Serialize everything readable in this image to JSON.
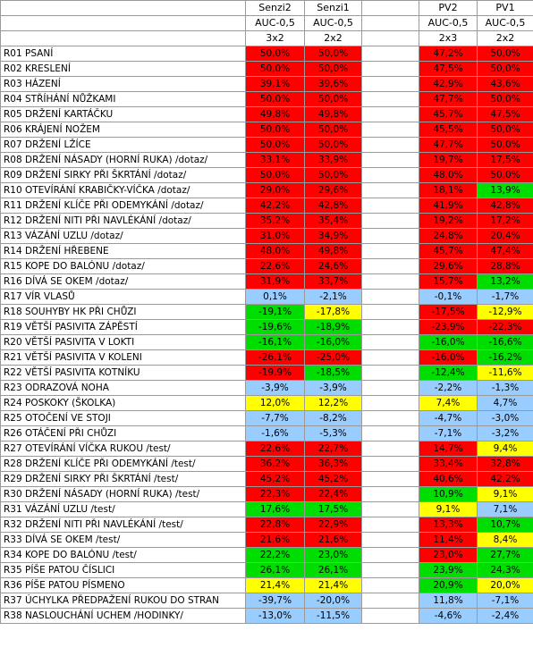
{
  "header": {
    "row1": [
      "Senzi2",
      "Senzi1",
      "PV2",
      "PV1"
    ],
    "row2": [
      "AUC-0,5",
      "AUC-0,5",
      "AUC-0,5",
      "AUC-0,5"
    ],
    "row3": [
      "3x2",
      "2x2",
      "2x3",
      "2x2"
    ]
  },
  "colors": {
    "red": "#ff0000",
    "green": "#00dd00",
    "yellow": "#ffff00",
    "blue": "#99ccff"
  },
  "rows": [
    {
      "label": "R01 PSANÍ",
      "v": [
        "50,0%",
        "50,0%",
        "47,2%",
        "50,0%"
      ],
      "c": [
        "red",
        "red",
        "red",
        "red"
      ]
    },
    {
      "label": "R02 KRESLENÍ",
      "v": [
        "50,0%",
        "50,0%",
        "47,5%",
        "50,0%"
      ],
      "c": [
        "red",
        "red",
        "red",
        "red"
      ]
    },
    {
      "label": "R03 HÁZENÍ",
      "v": [
        "39,1%",
        "39,6%",
        "42,9%",
        "43,6%"
      ],
      "c": [
        "red",
        "red",
        "red",
        "red"
      ]
    },
    {
      "label": "R04 STŘÍHÁNÍ NŮŽKAMI",
      "v": [
        "50,0%",
        "50,0%",
        "47,7%",
        "50,0%"
      ],
      "c": [
        "red",
        "red",
        "red",
        "red"
      ]
    },
    {
      "label": "R05 DRŽENÍ KARTÁČKU",
      "v": [
        "49,8%",
        "49,8%",
        "45,7%",
        "47,5%"
      ],
      "c": [
        "red",
        "red",
        "red",
        "red"
      ]
    },
    {
      "label": "R06 KRÁJENÍ NOŽEM",
      "v": [
        "50,0%",
        "50,0%",
        "45,5%",
        "50,0%"
      ],
      "c": [
        "red",
        "red",
        "red",
        "red"
      ]
    },
    {
      "label": "R07 DRŽENÍ LŽÍCE",
      "v": [
        "50,0%",
        "50,0%",
        "47,7%",
        "50,0%"
      ],
      "c": [
        "red",
        "red",
        "red",
        "red"
      ]
    },
    {
      "label": "R08 DRŽENÍ NÁSADY (HORNÍ RUKA) /dotaz/",
      "v": [
        "33,1%",
        "33,9%",
        "19,7%",
        "17,5%"
      ],
      "c": [
        "red",
        "red",
        "red",
        "red"
      ]
    },
    {
      "label": "R09 DRŽENÍ SIRKY PŘI ŠKRTÁNÍ /dotaz/",
      "v": [
        "50,0%",
        "50,0%",
        "48,0%",
        "50,0%"
      ],
      "c": [
        "red",
        "red",
        "red",
        "red"
      ]
    },
    {
      "label": "R10 OTEVÍRÁNÍ KRABIČKY-VÍČKA /dotaz/",
      "v": [
        "29,0%",
        "29,6%",
        "18,1%",
        "13,9%"
      ],
      "c": [
        "red",
        "red",
        "red",
        "green"
      ]
    },
    {
      "label": "R11 DRŽENÍ KLÍČE PŘI ODEMYKÁNÍ /dotaz/",
      "v": [
        "42,2%",
        "42,8%",
        "41,9%",
        "42,8%"
      ],
      "c": [
        "red",
        "red",
        "red",
        "red"
      ]
    },
    {
      "label": "R12 DRŽENÍ NITI PŘI NAVLÉKÁNÍ /dotaz/",
      "v": [
        "35,2%",
        "35,4%",
        "19,2%",
        "17,2%"
      ],
      "c": [
        "red",
        "red",
        "red",
        "red"
      ]
    },
    {
      "label": "R13 VÁZÁNÍ UZLU /dotaz/",
      "v": [
        "31,0%",
        "34,9%",
        "24,8%",
        "20,4%"
      ],
      "c": [
        "red",
        "red",
        "red",
        "red"
      ]
    },
    {
      "label": "R14 DRŽENÍ HŘEBENE",
      "v": [
        "48,0%",
        "49,8%",
        "45,7%",
        "47,4%"
      ],
      "c": [
        "red",
        "red",
        "red",
        "red"
      ]
    },
    {
      "label": "R15 KOPE DO BALÓNU /dotaz/",
      "v": [
        "22,6%",
        "24,6%",
        "29,6%",
        "28,8%"
      ],
      "c": [
        "red",
        "red",
        "red",
        "red"
      ]
    },
    {
      "label": "R16 DÍVÁ SE OKEM /dotaz/",
      "v": [
        "31,9%",
        "33,7%",
        "15,7%",
        "13,2%"
      ],
      "c": [
        "red",
        "red",
        "red",
        "green"
      ]
    },
    {
      "label": "R17 VÍR VLASŮ",
      "v": [
        "0,1%",
        "-2,1%",
        "-0,1%",
        "-1,7%"
      ],
      "c": [
        "blue",
        "blue",
        "blue",
        "blue"
      ]
    },
    {
      "label": "R18 SOUHYBY HK PŘI CHŮZI",
      "v": [
        "-19,1%",
        "-17,8%",
        "-17,5%",
        "-12,9%"
      ],
      "c": [
        "green",
        "yellow",
        "red",
        "yellow"
      ]
    },
    {
      "label": "R19 VĚTŠÍ PASIVITA ZÁPĚSTÍ",
      "v": [
        "-19,6%",
        "-18,9%",
        "-23,9%",
        "-22,3%"
      ],
      "c": [
        "green",
        "green",
        "red",
        "red"
      ]
    },
    {
      "label": "R20 VĚTŠÍ PASIVITA V LOKTI",
      "v": [
        "-16,1%",
        "-16,0%",
        "-16,0%",
        "-16,6%"
      ],
      "c": [
        "green",
        "green",
        "green",
        "green"
      ]
    },
    {
      "label": "R21 VĚTŠÍ PASIVITA V KOLENI",
      "v": [
        "-26,1%",
        "-25,0%",
        "-16,0%",
        "-16,2%"
      ],
      "c": [
        "red",
        "red",
        "red",
        "green"
      ]
    },
    {
      "label": "R22 VĚTŠÍ PASIVITA KOTNÍKU",
      "v": [
        "-19,9%",
        "-18,5%",
        "-12,4%",
        "-11,6%"
      ],
      "c": [
        "red",
        "green",
        "green",
        "yellow"
      ]
    },
    {
      "label": "R23 ODRAZOVÁ NOHA",
      "v": [
        "-3,9%",
        "-3,9%",
        "-2,2%",
        "-1,3%"
      ],
      "c": [
        "blue",
        "blue",
        "blue",
        "blue"
      ]
    },
    {
      "label": "R24 POSKOKY (ŠKOLKA)",
      "v": [
        "12,0%",
        "12,2%",
        "7,4%",
        "4,7%"
      ],
      "c": [
        "yellow",
        "yellow",
        "yellow",
        "blue"
      ]
    },
    {
      "label": "R25 OTOČENÍ VE STOJI",
      "v": [
        "-7,7%",
        "-8,2%",
        "-4,7%",
        "-3,0%"
      ],
      "c": [
        "blue",
        "blue",
        "blue",
        "blue"
      ]
    },
    {
      "label": "R26 OTÁČENÍ PŘI CHŮZI",
      "v": [
        "-1,6%",
        "-5,3%",
        "-7,1%",
        "-3,2%"
      ],
      "c": [
        "blue",
        "blue",
        "blue",
        "blue"
      ]
    },
    {
      "label": "R27 OTEVÍRÁNÍ VÍČKA RUKOU /test/",
      "v": [
        "22,6%",
        "22,7%",
        "14,7%",
        "9,4%"
      ],
      "c": [
        "red",
        "red",
        "red",
        "yellow"
      ]
    },
    {
      "label": "R28 DRŽENÍ KLÍČE PŘI ODEMYKÁNÍ /test/",
      "v": [
        "36,2%",
        "36,3%",
        "33,4%",
        "32,8%"
      ],
      "c": [
        "red",
        "red",
        "red",
        "red"
      ]
    },
    {
      "label": "R29 DRŽENÍ SIRKY PŘI ŠKRTÁNÍ /test/",
      "v": [
        "45,2%",
        "45,2%",
        "40,6%",
        "42,2%"
      ],
      "c": [
        "red",
        "red",
        "red",
        "red"
      ]
    },
    {
      "label": "R30 DRŽENÍ NÁSADY (HORNÍ RUKA) /test/",
      "v": [
        "22,3%",
        "22,4%",
        "10,9%",
        "9,1%"
      ],
      "c": [
        "red",
        "red",
        "green",
        "yellow"
      ]
    },
    {
      "label": "R31 VÁZÁNÍ UZLU /test/",
      "v": [
        "17,6%",
        "17,5%",
        "9,1%",
        "7,1%"
      ],
      "c": [
        "green",
        "green",
        "yellow",
        "blue"
      ]
    },
    {
      "label": "R32 DRŽENÍ NITI PŘI NAVLÉKÁNÍ /test/",
      "v": [
        "22,8%",
        "22,9%",
        "13,3%",
        "10,7%"
      ],
      "c": [
        "red",
        "red",
        "red",
        "green"
      ]
    },
    {
      "label": "R33 DÍVÁ SE OKEM /test/",
      "v": [
        "21,6%",
        "21,6%",
        "11,4%",
        "8,4%"
      ],
      "c": [
        "red",
        "red",
        "red",
        "yellow"
      ]
    },
    {
      "label": "R34 KOPE DO BALÓNU /test/",
      "v": [
        "22,2%",
        "23,0%",
        "23,0%",
        "27,7%"
      ],
      "c": [
        "green",
        "green",
        "red",
        "green"
      ]
    },
    {
      "label": "R35 PÍŠE PATOU ČÍSLICI",
      "v": [
        "26,1%",
        "26,1%",
        "23,9%",
        "24,3%"
      ],
      "c": [
        "green",
        "green",
        "green",
        "green"
      ]
    },
    {
      "label": "R36 PÍŠE PATOU PÍSMENO",
      "v": [
        "21,4%",
        "21,4%",
        "20,9%",
        "20,0%"
      ],
      "c": [
        "yellow",
        "yellow",
        "green",
        "yellow"
      ]
    },
    {
      "label": "R37 ÚCHYLKA PŘEDPAŽENÍ RUKOU DO STRAN",
      "v": [
        "-39,7%",
        "-20,0%",
        "11,8%",
        "-7,1%"
      ],
      "c": [
        "blue",
        "blue",
        "blue",
        "blue"
      ]
    },
    {
      "label": "R38 NASLOUCHÁNÍ UCHEM /HODINKY/",
      "v": [
        "-13,0%",
        "-11,5%",
        "-4,6%",
        "-2,4%"
      ],
      "c": [
        "blue",
        "blue",
        "blue",
        "blue"
      ]
    }
  ]
}
